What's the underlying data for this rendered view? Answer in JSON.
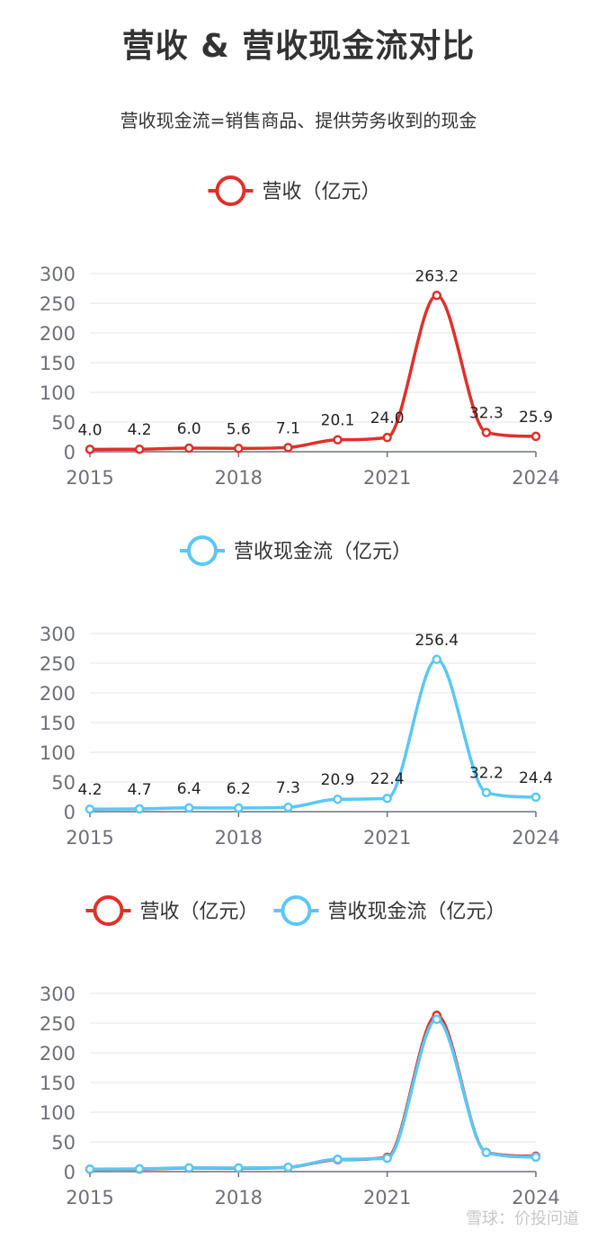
{
  "title": "营收 & 营收现金流对比",
  "subtitle": "营收现金流=销售商品、提供劳务收到的现金",
  "watermark": "雪球：价投问道",
  "colors": {
    "revenue": "#e0302a",
    "cashflow": "#5ac8f5",
    "grid": "#e6e6ee",
    "axis_text": "#6e7079"
  },
  "chart_data": [
    {
      "type": "line",
      "x": [
        2015,
        2016,
        2017,
        2018,
        2019,
        2020,
        2021,
        2022,
        2023,
        2024
      ],
      "x_ticks": [
        "2015",
        "2018",
        "2021",
        "2024"
      ],
      "ylim": [
        0,
        300
      ],
      "y_ticks": [
        "0",
        "50",
        "100",
        "150",
        "200",
        "250",
        "300"
      ],
      "grid": true,
      "legend": "top-center",
      "show_labels": true,
      "series": [
        {
          "name": "营收（亿元）",
          "color": "#e0302a",
          "values": [
            4.0,
            4.2,
            6.0,
            5.6,
            7.1,
            20.1,
            24.0,
            263.2,
            32.3,
            25.9
          ],
          "labels": [
            "4.0",
            "4.2",
            "6.0",
            "5.6",
            "7.1",
            "20.1",
            "24.0",
            "263.2",
            "32.3",
            "25.9"
          ]
        }
      ]
    },
    {
      "type": "line",
      "x": [
        2015,
        2016,
        2017,
        2018,
        2019,
        2020,
        2021,
        2022,
        2023,
        2024
      ],
      "x_ticks": [
        "2015",
        "2018",
        "2021",
        "2024"
      ],
      "ylim": [
        0,
        300
      ],
      "y_ticks": [
        "0",
        "50",
        "100",
        "150",
        "200",
        "250",
        "300"
      ],
      "grid": true,
      "legend": "top-center",
      "show_labels": true,
      "series": [
        {
          "name": "营收现金流（亿元）",
          "color": "#5ac8f5",
          "values": [
            4.2,
            4.7,
            6.4,
            6.2,
            7.3,
            20.9,
            22.4,
            256.4,
            32.2,
            24.4
          ],
          "labels": [
            "4.2",
            "4.7",
            "6.4",
            "6.2",
            "7.3",
            "20.9",
            "22.4",
            "256.4",
            "32.2",
            "24.4"
          ]
        }
      ]
    },
    {
      "type": "line",
      "x": [
        2015,
        2016,
        2017,
        2018,
        2019,
        2020,
        2021,
        2022,
        2023,
        2024
      ],
      "x_ticks": [
        "2015",
        "2018",
        "2021",
        "2024"
      ],
      "ylim": [
        0,
        300
      ],
      "y_ticks": [
        "0",
        "50",
        "100",
        "150",
        "200",
        "250",
        "300"
      ],
      "grid": true,
      "legend": "top-center",
      "show_labels": false,
      "series": [
        {
          "name": "营收（亿元）",
          "color": "#e0302a",
          "values": [
            4.0,
            4.2,
            6.0,
            5.6,
            7.1,
            20.1,
            24.0,
            263.2,
            32.3,
            25.9
          ]
        },
        {
          "name": "营收现金流（亿元）",
          "color": "#5ac8f5",
          "values": [
            4.2,
            4.7,
            6.4,
            6.2,
            7.3,
            20.9,
            22.4,
            256.4,
            32.2,
            24.4
          ]
        }
      ]
    }
  ]
}
